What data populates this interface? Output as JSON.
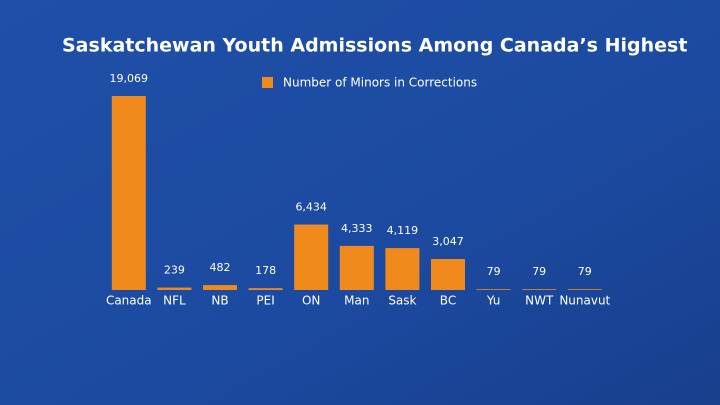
{
  "chart_data": {
    "type": "bar",
    "title": "Saskatchewan Youth Admissions Among Canada’s Highest",
    "categories": [
      "Canada",
      "NFL",
      "NB",
      "PEI",
      "ON",
      "Man",
      "Sask",
      "BC",
      "Yu",
      "NWT",
      "Nunavut"
    ],
    "series": [
      {
        "name": "Number of Minors in Corrections",
        "color": "#f08a1c",
        "values": [
          19069,
          239,
          482,
          178,
          6434,
          4333,
          4119,
          3047,
          79,
          79,
          79
        ],
        "value_labels": [
          "19,069",
          "239",
          "482",
          "178",
          "6,434",
          "4,333",
          "4,119",
          "3,047",
          "79",
          "79",
          "79"
        ]
      }
    ]
  }
}
